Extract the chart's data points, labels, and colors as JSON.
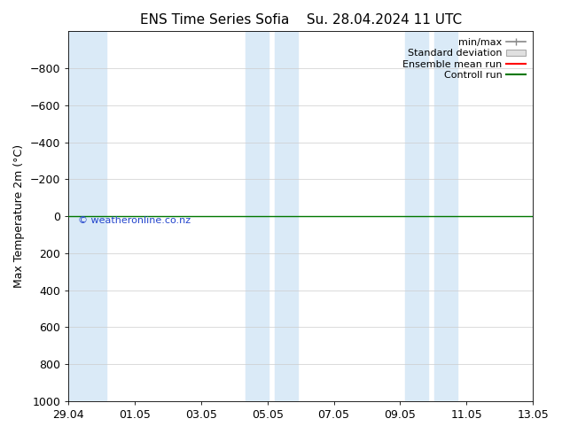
{
  "title_left": "ENS Time Series Sofia",
  "title_right": "Su. 28.04.2024 11 UTC",
  "ylabel": "Max Temperature 2m (°C)",
  "ylim_bottom": 1000,
  "ylim_top": -1000,
  "yticks": [
    -800,
    -600,
    -400,
    -200,
    0,
    200,
    400,
    600,
    800,
    1000
  ],
  "xtick_labels": [
    "29.04",
    "01.05",
    "03.05",
    "05.05",
    "07.05",
    "09.05",
    "11.05",
    "13.05"
  ],
  "xmin": 0,
  "xmax": 16,
  "blue_shade_regions": [
    [
      0.0,
      1.3
    ],
    [
      6.1,
      6.9
    ],
    [
      7.1,
      7.9
    ],
    [
      11.6,
      12.4
    ],
    [
      12.6,
      13.4
    ]
  ],
  "green_line_y": 0,
  "bg_color": "#ffffff",
  "shade_color": "#daeaf7",
  "green_color": "#007700",
  "red_color": "#ff0000",
  "copyright_text": "© weatheronline.co.nz",
  "legend_items": [
    {
      "label": "min/max",
      "color": "#888888",
      "style": "errorbar"
    },
    {
      "label": "Standard deviation",
      "color": "#cccccc",
      "style": "box"
    },
    {
      "label": "Ensemble mean run",
      "color": "#ff0000",
      "style": "line"
    },
    {
      "label": "Controll run",
      "color": "#007700",
      "style": "line"
    }
  ],
  "title_fontsize": 11,
  "axis_fontsize": 9,
  "tick_fontsize": 9,
  "legend_fontsize": 8
}
